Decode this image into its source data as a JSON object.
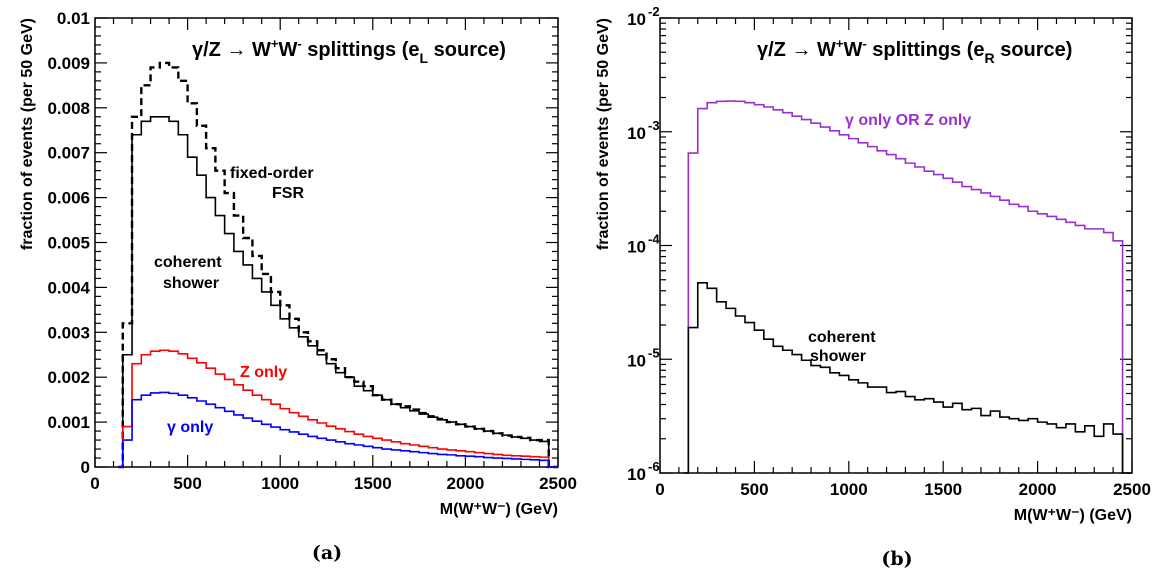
{
  "chart_data": [
    {
      "type": "line",
      "panel": "(a)",
      "title_main": "γ/Z → W",
      "title_sup1": "+",
      "title_mid": "W",
      "title_sup2": "-",
      "title_rest": " splittings (e",
      "title_sub": "L",
      "title_end": " source)",
      "xlabel": "M(W⁺W⁻)  (GeV)",
      "ylabel": "fraction of events (per 50 GeV)",
      "xlim": [
        0,
        2500
      ],
      "ylim": [
        0,
        0.01
      ],
      "xticks": [
        "0",
        "500",
        "1000",
        "1500",
        "2000",
        "2500"
      ],
      "yticks": [
        "0",
        "0.001",
        "0.002",
        "0.003",
        "0.004",
        "0.005",
        "0.006",
        "0.007",
        "0.008",
        "0.009",
        "0.01"
      ],
      "bin_width": 50,
      "x": [
        175,
        225,
        275,
        325,
        375,
        425,
        475,
        525,
        575,
        625,
        675,
        725,
        775,
        825,
        875,
        925,
        975,
        1025,
        1075,
        1125,
        1175,
        1225,
        1275,
        1325,
        1375,
        1425,
        1475,
        1525,
        1575,
        1625,
        1675,
        1725,
        1775,
        1825,
        1875,
        1925,
        1975,
        2025,
        2075,
        2125,
        2175,
        2225,
        2275,
        2325,
        2375,
        2425
      ],
      "series": [
        {
          "label": "fixed-order FSR",
          "label_line1": "fixed-order",
          "label_line2": "FSR",
          "color": "#000000",
          "style": "dashed",
          "values": [
            0.0032,
            0.0078,
            0.0085,
            0.0089,
            0.009,
            0.0089,
            0.0086,
            0.0081,
            0.0076,
            0.0071,
            0.0066,
            0.0061,
            0.0056,
            0.0051,
            0.0047,
            0.0043,
            0.0039,
            0.0036,
            0.0033,
            0.003,
            0.0028,
            0.0026,
            0.0024,
            0.0022,
            0.002,
            0.0019,
            0.0018,
            0.0016,
            0.0015,
            0.0014,
            0.00135,
            0.00128,
            0.0012,
            0.00113,
            0.00107,
            0.001,
            0.00095,
            0.0009,
            0.00085,
            0.0008,
            0.00075,
            0.0007,
            0.00067,
            0.00065,
            0.0006,
            0.0006
          ]
        },
        {
          "label": "coherent shower",
          "label_line1": "coherent",
          "label_line2": "shower",
          "color": "#000000",
          "style": "solid",
          "values": [
            0.0025,
            0.0074,
            0.0077,
            0.0078,
            0.0078,
            0.0077,
            0.0074,
            0.0069,
            0.0065,
            0.006,
            0.0056,
            0.0052,
            0.0048,
            0.0045,
            0.0042,
            0.0039,
            0.0036,
            0.0033,
            0.0031,
            0.0029,
            0.0027,
            0.0025,
            0.0023,
            0.0021,
            0.002,
            0.0018,
            0.0017,
            0.0016,
            0.0015,
            0.0014,
            0.00132,
            0.00125,
            0.00118,
            0.00111,
            0.00105,
            0.001,
            0.00095,
            0.0009,
            0.00085,
            0.0008,
            0.00075,
            0.00071,
            0.00067,
            0.00064,
            0.0006,
            0.00057
          ]
        },
        {
          "label": "Z only",
          "color": "#ff0000",
          "style": "solid",
          "values": [
            0.0009,
            0.0023,
            0.0025,
            0.00258,
            0.0026,
            0.00258,
            0.00252,
            0.00242,
            0.00232,
            0.0022,
            0.00207,
            0.00195,
            0.00183,
            0.00171,
            0.0016,
            0.0015,
            0.0014,
            0.0013,
            0.00121,
            0.00113,
            0.00105,
            0.00098,
            0.00091,
            0.00085,
            0.00079,
            0.00073,
            0.00068,
            0.00064,
            0.0006,
            0.00056,
            0.00052,
            0.00049,
            0.00046,
            0.00043,
            0.0004,
            0.00038,
            0.00036,
            0.00034,
            0.00032,
            0.0003,
            0.00028,
            0.00026,
            0.00025,
            0.00024,
            0.00023,
            0.00022
          ]
        },
        {
          "label": "γ only",
          "color": "#0000ff",
          "style": "solid",
          "values": [
            0.0006,
            0.0015,
            0.0016,
            0.00165,
            0.00166,
            0.00164,
            0.0016,
            0.00154,
            0.00147,
            0.0014,
            0.00132,
            0.00124,
            0.00116,
            0.00109,
            0.00102,
            0.00095,
            0.00089,
            0.00083,
            0.00078,
            0.00073,
            0.00068,
            0.00064,
            0.0006,
            0.00056,
            0.00052,
            0.00049,
            0.00046,
            0.00043,
            0.0004,
            0.00038,
            0.00036,
            0.00034,
            0.00032,
            0.0003,
            0.00028,
            0.00027,
            0.00025,
            0.00024,
            0.00023,
            0.00021,
            0.0002,
            0.00019,
            0.00018,
            0.00017,
            0.00016,
            0.00015
          ]
        }
      ]
    },
    {
      "type": "line",
      "panel": "(b)",
      "title_main": "γ/Z → W",
      "title_sup1": "+",
      "title_mid": "W",
      "title_sup2": "-",
      "title_rest": " splittings (e",
      "title_sub": "R",
      "title_end": " source)",
      "xlabel": "M(W⁺W⁻)  (GeV)",
      "ylabel": "fraction of events (per 50 GeV)",
      "xlim": [
        0,
        2500
      ],
      "ylim": [
        1e-06,
        0.01
      ],
      "yscale": "log",
      "xticks": [
        "0",
        "500",
        "1000",
        "1500",
        "2000",
        "2500"
      ],
      "yticks": [
        {
          "base": "10",
          "exp": "-6"
        },
        {
          "base": "10",
          "exp": "-5"
        },
        {
          "base": "10",
          "exp": "-4"
        },
        {
          "base": "10",
          "exp": "-3"
        },
        {
          "base": "10",
          "exp": "-2"
        }
      ],
      "bin_width": 50,
      "x": [
        175,
        225,
        275,
        325,
        375,
        425,
        475,
        525,
        575,
        625,
        675,
        725,
        775,
        825,
        875,
        925,
        975,
        1025,
        1075,
        1125,
        1175,
        1225,
        1275,
        1325,
        1375,
        1425,
        1475,
        1525,
        1575,
        1625,
        1675,
        1725,
        1775,
        1825,
        1875,
        1925,
        1975,
        2025,
        2075,
        2125,
        2175,
        2225,
        2275,
        2325,
        2375,
        2425
      ],
      "series": [
        {
          "label": "γ only OR Z only",
          "color": "#9932cc",
          "style": "solid",
          "values": [
            0.00065,
            0.0016,
            0.0018,
            0.00185,
            0.00186,
            0.00185,
            0.0018,
            0.00173,
            0.00165,
            0.00156,
            0.00147,
            0.00137,
            0.00128,
            0.00119,
            0.0011,
            0.00102,
            0.00094,
            0.00087,
            0.0008,
            0.00074,
            0.00068,
            0.00063,
            0.00058,
            0.00053,
            0.00049,
            0.00045,
            0.00042,
            0.00039,
            0.00036,
            0.00033,
            0.00031,
            0.00029,
            0.00027,
            0.00025,
            0.00023,
            0.00022,
            0.0002,
            0.00019,
            0.00018,
            0.00017,
            0.00016,
            0.00015,
            0.00014,
            0.00014,
            0.00013,
            0.00011
          ]
        },
        {
          "label": "coherent shower",
          "label_line1": "coherent",
          "label_line2": "shower",
          "color": "#000000",
          "style": "solid",
          "values": [
            1.9e-05,
            4.7e-05,
            4.2e-05,
            3.2e-05,
            2.8e-05,
            2.4e-05,
            2.1e-05,
            1.8e-05,
            1.5e-05,
            1.3e-05,
            1.2e-05,
            1.1e-05,
            9.8e-06,
            8.8e-06,
            8.5e-06,
            7.6e-06,
            7.2e-06,
            6.6e-06,
            6.2e-06,
            5.7e-06,
            5.7e-06,
            5.1e-06,
            5.2e-06,
            4.7e-06,
            4.4e-06,
            4.5e-06,
            4.2e-06,
            3.8e-06,
            4.1e-06,
            3.6e-06,
            3.7e-06,
            3.2e-06,
            3.5e-06,
            3.1e-06,
            3e-06,
            2.9e-06,
            3e-06,
            2.8e-06,
            2.7e-06,
            2.5e-06,
            2.7e-06,
            2.3e-06,
            2.6e-06,
            2.1e-06,
            2.7e-06,
            2.2e-06
          ]
        }
      ]
    }
  ]
}
